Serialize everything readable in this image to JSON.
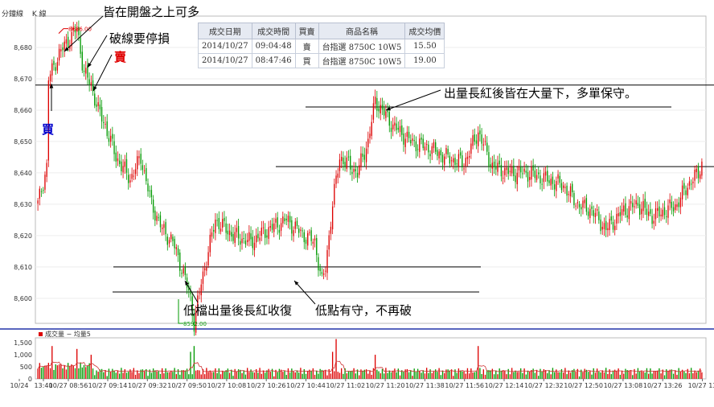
{
  "header": {
    "interval_label": "分鐘線",
    "kline_label": "K 線"
  },
  "trade_table": {
    "columns": [
      "成交日期",
      "成交時間",
      "買賣",
      "商品名稱",
      "成交均價"
    ],
    "rows": [
      {
        "date": "2014/10/27",
        "time": "09:04:48",
        "side": "賣",
        "product": "台指選 8750C 10W5",
        "price": "15.50"
      },
      {
        "date": "2014/10/27",
        "time": "08:47:46",
        "side": "買",
        "product": "台指選 8750C 10W5",
        "price": "19.00"
      }
    ]
  },
  "annotations": {
    "above_open": "皆在開盤之上可多",
    "stop_loss": "破線要停損",
    "sell": "賣",
    "buy": "買",
    "high_volume": "出量長紅後皆在大量下，多單保守。",
    "low_recover": "低檔出量後長紅收復",
    "low_hold": "低點有守，不再破"
  },
  "colors": {
    "up": "#dd0000",
    "down": "#009900",
    "ma": "#cc3333",
    "divider": "#2233aa"
  },
  "chart_data": {
    "type": "candlestick",
    "price_axis": {
      "ticks": [
        8600,
        8610,
        8620,
        8630,
        8640,
        8650,
        8660,
        8670,
        8680
      ],
      "range": [
        8592,
        8690
      ]
    },
    "max_label": "8686.00",
    "min_label": "8592.00",
    "reference_lines": [
      8668,
      8661,
      8642,
      8610,
      8602
    ],
    "volume_panel": {
      "legend": "成交量 − 均量5",
      "ticks": [
        "0",
        "500",
        "1,000",
        "1,500"
      ],
      "range": [
        0,
        1700
      ]
    },
    "x_labels": [
      "10/24",
      "13:40",
      "10/27 08:56",
      "10/27 09:14",
      "10/27 09:32",
      "10/27 09:50",
      "10/27 10:08",
      "10/27 10:26",
      "10/27 10:44",
      "10/27 11:02",
      "10/27 11:20",
      "10/27 11:38",
      "10/27 11:56",
      "10/27 12:14",
      "10/27 12:32",
      "10/27 12:50",
      "10/27 13:08",
      "10/27 13:26",
      "10/27 13"
    ],
    "close_keypoints": [
      [
        0,
        8630
      ],
      [
        5,
        8642
      ],
      [
        6,
        8670
      ],
      [
        12,
        8678
      ],
      [
        18,
        8683
      ],
      [
        22,
        8686
      ],
      [
        26,
        8672
      ],
      [
        30,
        8668
      ],
      [
        34,
        8660
      ],
      [
        38,
        8655
      ],
      [
        44,
        8645
      ],
      [
        52,
        8638
      ],
      [
        58,
        8645
      ],
      [
        64,
        8630
      ],
      [
        70,
        8622
      ],
      [
        76,
        8618
      ],
      [
        82,
        8608
      ],
      [
        86,
        8600
      ],
      [
        88,
        8592
      ],
      [
        92,
        8605
      ],
      [
        100,
        8625
      ],
      [
        110,
        8620
      ],
      [
        120,
        8618
      ],
      [
        130,
        8622
      ],
      [
        140,
        8625
      ],
      [
        150,
        8620
      ],
      [
        156,
        8618
      ],
      [
        160,
        8605
      ],
      [
        162,
        8610
      ],
      [
        166,
        8630
      ],
      [
        170,
        8645
      ],
      [
        180,
        8640
      ],
      [
        186,
        8650
      ],
      [
        190,
        8663
      ],
      [
        200,
        8655
      ],
      [
        210,
        8650
      ],
      [
        220,
        8648
      ],
      [
        230,
        8645
      ],
      [
        240,
        8643
      ],
      [
        248,
        8653
      ],
      [
        256,
        8642
      ],
      [
        266,
        8640
      ],
      [
        276,
        8640
      ],
      [
        286,
        8638
      ],
      [
        296,
        8636
      ],
      [
        304,
        8630
      ],
      [
        312,
        8628
      ],
      [
        320,
        8622
      ],
      [
        330,
        8628
      ],
      [
        338,
        8630
      ],
      [
        346,
        8626
      ],
      [
        354,
        8628
      ],
      [
        360,
        8630
      ],
      [
        366,
        8636
      ],
      [
        372,
        8640
      ],
      [
        374,
        8643
      ]
    ]
  }
}
